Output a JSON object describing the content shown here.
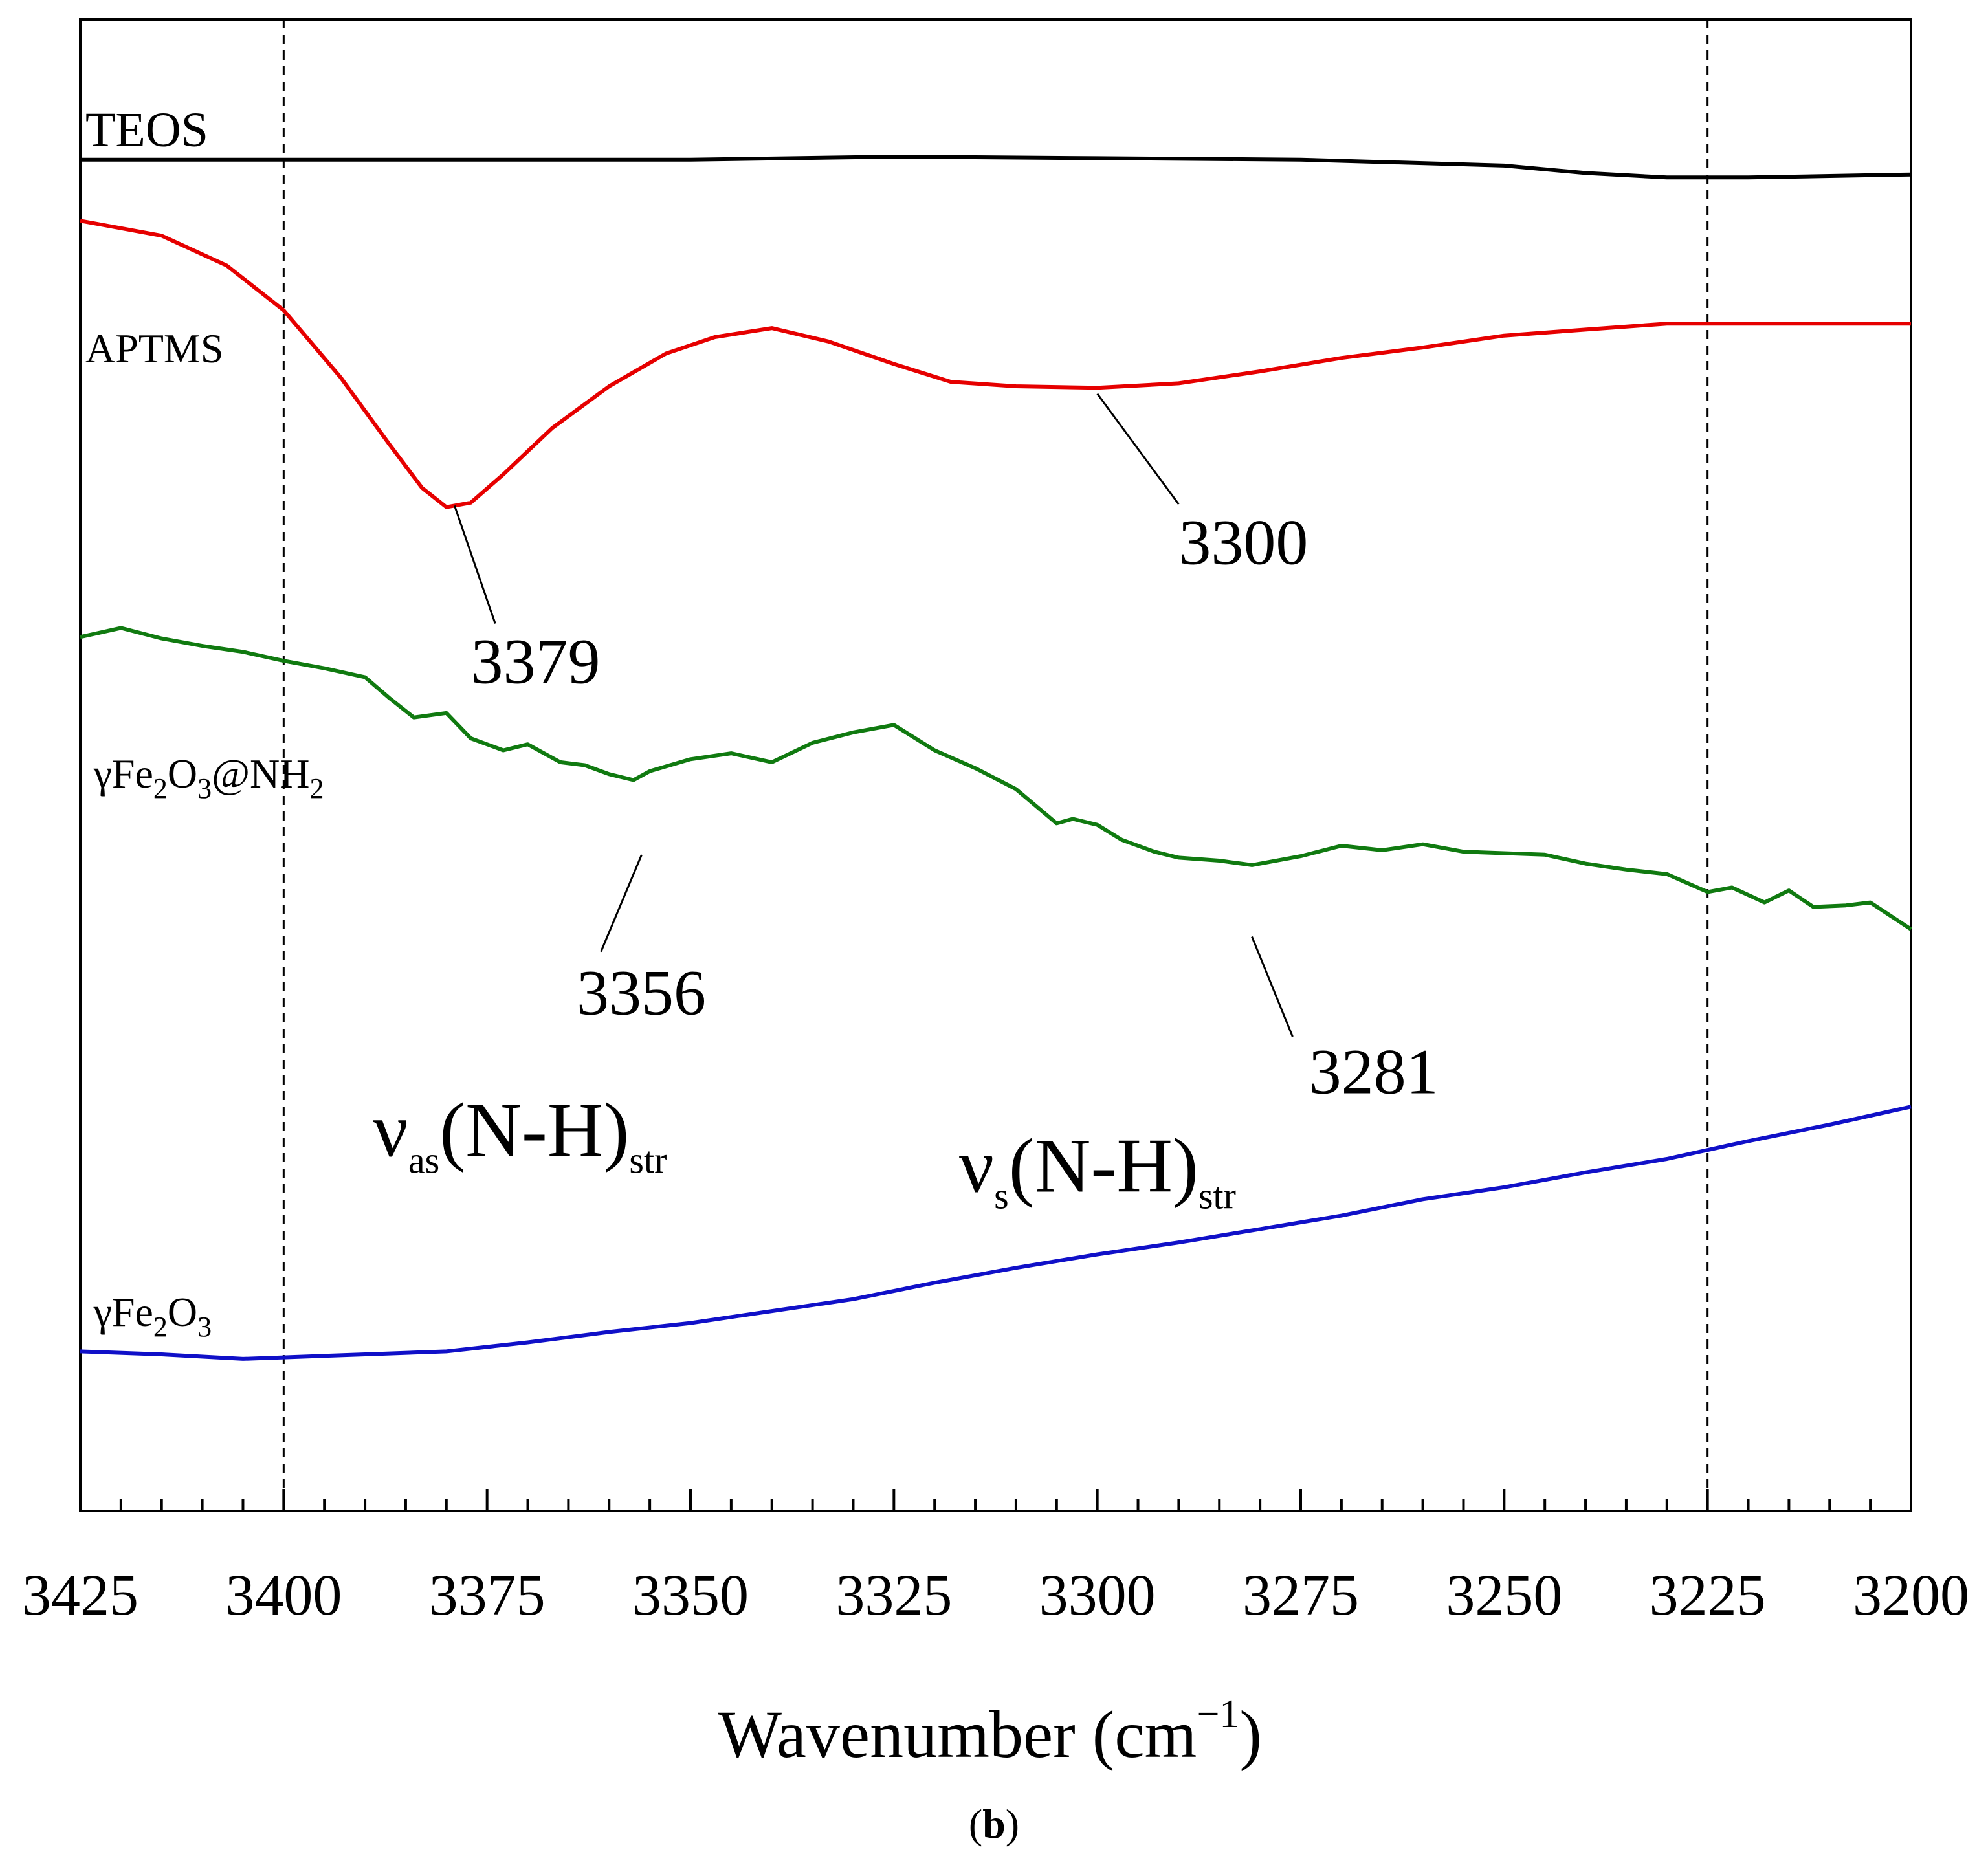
{
  "chart_data": {
    "type": "line",
    "xlabel": "Wavenumber (cm",
    "xlabel_exp": "−1",
    "xlabel_close": ")",
    "caption_open": "(",
    "caption_letter": "b",
    "caption_close": ")",
    "xlim": [
      3425,
      3200
    ],
    "xticks": [
      3425,
      3400,
      3375,
      3350,
      3325,
      3300,
      3275,
      3250,
      3225,
      3200
    ],
    "xtick_labels": [
      "3425",
      "3400",
      "3375",
      "3350",
      "3325",
      "3300",
      "3275",
      "3250",
      "3225",
      "3200"
    ],
    "ylim": [
      0,
      100
    ],
    "yticks_shown": false,
    "reference_lines": [
      3400,
      3225
    ],
    "series": [
      {
        "name": "TEOS",
        "label_parts": [
          {
            "t": "TEOS"
          }
        ],
        "color": "#000000",
        "label_at": [
          3425,
          91.5
        ],
        "x": [
          3425,
          3400,
          3375,
          3350,
          3325,
          3300,
          3275,
          3250,
          3240,
          3230,
          3220,
          3210,
          3200
        ],
        "y": [
          90.6,
          90.6,
          90.6,
          90.6,
          90.8,
          90.7,
          90.6,
          90.2,
          89.7,
          89.4,
          89.4,
          89.5,
          89.6
        ]
      },
      {
        "name": "APTMS",
        "label_parts": [
          {
            "t": "APTMS"
          }
        ],
        "color": "#e60000",
        "label_at": [
          3425,
          77.0
        ],
        "x": [
          3425,
          3415,
          3407,
          3400,
          3393,
          3387,
          3383,
          3380,
          3377,
          3373,
          3367,
          3360,
          3353,
          3347,
          3340,
          3333,
          3325,
          3318,
          3310,
          3300,
          3290,
          3280,
          3270,
          3260,
          3250,
          3240,
          3230,
          3225,
          3215,
          3200
        ],
        "y": [
          86.5,
          85.5,
          83.5,
          80.5,
          76.0,
          71.5,
          68.6,
          67.3,
          67.6,
          69.5,
          72.6,
          75.4,
          77.6,
          78.7,
          79.3,
          78.4,
          76.9,
          75.7,
          75.4,
          75.3,
          75.6,
          76.4,
          77.3,
          78.0,
          78.8,
          79.2,
          79.6,
          79.6,
          79.6,
          79.6
        ]
      },
      {
        "name": "γFe2O3@NH2",
        "label_parts": [
          {
            "t": "γFe"
          },
          {
            "t": "2",
            "sub": true
          },
          {
            "t": "O"
          },
          {
            "t": "3",
            "sub": true
          },
          {
            "t": "@NH"
          },
          {
            "t": "2",
            "sub": true
          }
        ],
        "color": "#107a10",
        "label_at": [
          3424,
          48.5
        ],
        "x": [
          3425,
          3420,
          3415,
          3410,
          3405,
          3400,
          3395,
          3390,
          3387,
          3384,
          3380,
          3377,
          3373,
          3370,
          3366,
          3363,
          3360,
          3357,
          3355,
          3350,
          3345,
          3340,
          3335,
          3330,
          3325,
          3320,
          3315,
          3310,
          3305,
          3303,
          3300,
          3297,
          3293,
          3290,
          3285,
          3281,
          3275,
          3270,
          3265,
          3260,
          3255,
          3250,
          3245,
          3240,
          3235,
          3230,
          3225,
          3222,
          3218,
          3215,
          3212,
          3208,
          3205,
          3200
        ],
        "y": [
          58.6,
          59.2,
          58.5,
          58.0,
          57.6,
          57.0,
          56.5,
          55.9,
          54.5,
          53.2,
          53.5,
          51.8,
          51.0,
          51.4,
          50.2,
          50.0,
          49.4,
          49.0,
          49.6,
          50.4,
          50.8,
          50.2,
          51.5,
          52.2,
          52.7,
          51.0,
          49.8,
          48.4,
          46.1,
          46.4,
          46.0,
          45.0,
          44.2,
          43.8,
          43.6,
          43.3,
          43.9,
          44.6,
          44.3,
          44.7,
          44.2,
          44.1,
          44.0,
          43.4,
          43.0,
          42.7,
          41.5,
          41.8,
          40.8,
          41.6,
          40.5,
          40.6,
          40.8,
          39.0
        ]
      },
      {
        "name": "γFe2O3",
        "label_parts": [
          {
            "t": "γFe"
          },
          {
            "t": "2",
            "sub": true
          },
          {
            "t": "O"
          },
          {
            "t": "3",
            "sub": true
          }
        ],
        "color": "#1010c8",
        "label_at": [
          3424,
          12.4
        ],
        "x": [
          3425,
          3415,
          3405,
          3400,
          3390,
          3380,
          3370,
          3360,
          3350,
          3340,
          3330,
          3320,
          3310,
          3300,
          3290,
          3280,
          3270,
          3260,
          3250,
          3240,
          3230,
          3220,
          3210,
          3200
        ],
        "y": [
          10.7,
          10.5,
          10.2,
          10.3,
          10.5,
          10.7,
          11.3,
          12.0,
          12.6,
          13.4,
          14.2,
          15.3,
          16.3,
          17.2,
          18.0,
          18.9,
          19.8,
          20.9,
          21.7,
          22.7,
          23.6,
          24.8,
          25.9,
          27.1
        ]
      }
    ],
    "annotations": [
      {
        "text": "3379",
        "point": [
          3379,
          67.4
        ],
        "leader_to": [
          3374,
          59.5
        ],
        "text_at": [
          3377,
          55.5
        ]
      },
      {
        "text": "3300",
        "point": [
          3300,
          74.9
        ],
        "leader_to": [
          3290,
          67.5
        ],
        "text_at": [
          3290,
          63.5
        ]
      },
      {
        "text": "3356",
        "point": [
          3356,
          44.0
        ],
        "leader_to": [
          3361,
          37.5
        ],
        "text_at": [
          3364,
          33.3
        ]
      },
      {
        "text": "3281",
        "point": [
          3281,
          38.5
        ],
        "leader_to": [
          3276,
          31.8
        ],
        "text_at": [
          3274,
          28.0
        ]
      }
    ],
    "band_labels": [
      {
        "parts": [
          {
            "t": "ν"
          },
          {
            "t": "as",
            "sub": true
          },
          {
            "t": "(N-H)",
            "sub": false
          },
          {
            "t": "str",
            "sub": true
          }
        ],
        "text_at": [
          3389,
          23.8
        ]
      },
      {
        "parts": [
          {
            "t": "ν"
          },
          {
            "t": "s",
            "sub": true
          },
          {
            "t": "(N-H)",
            "sub": false
          },
          {
            "t": "str",
            "sub": true
          }
        ],
        "text_at": [
          3317,
          21.4
        ]
      }
    ]
  }
}
